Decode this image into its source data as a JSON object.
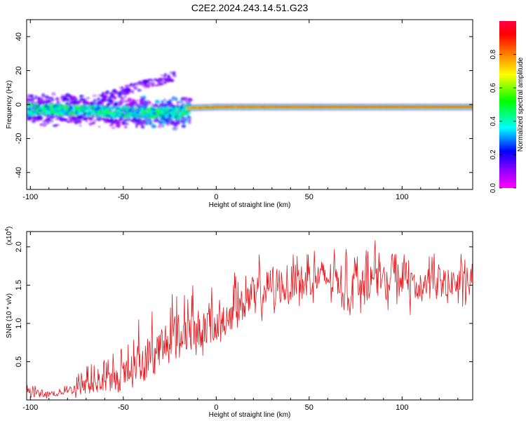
{
  "title": "C2E2.2024.243.14.51.G23",
  "colorbar": {
    "label": "Normalized spectral amplitude",
    "range": [
      0,
      1
    ],
    "ticks": [
      "0.0",
      "0.2",
      "0.4",
      "0.6",
      "0.8"
    ],
    "tick_values": [
      0.0,
      0.2,
      0.4,
      0.6,
      0.8
    ],
    "colormap": [
      "#ff00ff",
      "#8000ff",
      "#0000ff",
      "#00ffff",
      "#00ff00",
      "#ffff00",
      "#ff8000",
      "#ff0000",
      "#ff0040"
    ]
  },
  "chart_data": [
    {
      "type": "heatmap",
      "title": "",
      "xlabel": "Height of straight line (km)",
      "ylabel": "Frequency (Hz)",
      "xlim": [
        -102,
        138
      ],
      "ylim": [
        -50,
        50
      ],
      "xticks": [
        -100,
        -50,
        0,
        50,
        100
      ],
      "xtick_labels": [
        "-100",
        "-50",
        "0",
        "50",
        "100"
      ],
      "yticks": [
        -40,
        -20,
        0,
        20,
        40
      ],
      "ytick_labels": [
        "-40",
        "-20",
        "0",
        "20",
        "40"
      ],
      "grid": false,
      "description_of_signal": [
        {
          "x_range": [
            -102,
            -16
          ],
          "frequency_range": [
            -12,
            6
          ],
          "amplitude": "low-medium, scattered"
        },
        {
          "x_range": [
            -60,
            -22
          ],
          "frequency_range": [
            5,
            18
          ],
          "amplitude": "low, rising diagonal streak"
        },
        {
          "x_range": [
            -16,
            138
          ],
          "frequency": -1.5,
          "amplitude": "high, steady narrow band"
        }
      ],
      "ridge": {
        "x": [
          -102,
          -80,
          -60,
          -40,
          -20,
          -15,
          0,
          20,
          50,
          100,
          138
        ],
        "frequency": [
          -3,
          -3,
          -4,
          -5,
          -5,
          -2,
          -1.5,
          -1.5,
          -1.5,
          -1.5,
          -1.5
        ],
        "amplitude": [
          0.35,
          0.4,
          0.4,
          0.45,
          0.5,
          0.9,
          0.95,
          0.97,
          1.0,
          1.0,
          1.0
        ]
      }
    },
    {
      "type": "line",
      "title": "",
      "xlabel": "Height of straight line (km)",
      "ylabel": "SNR (10 * v/v)",
      "y_multiplier": "(x10",
      "y_multiplier_exp": "4",
      "y_multiplier_close": ")",
      "xlim": [
        -102,
        138
      ],
      "ylim": [
        0,
        22000
      ],
      "xticks": [
        -100,
        -50,
        0,
        50,
        100
      ],
      "xtick_labels": [
        "-100",
        "-50",
        "0",
        "50",
        "100"
      ],
      "yticks": [
        5000,
        10000,
        15000,
        20000
      ],
      "ytick_labels": [
        "0.5",
        "1.0",
        "1.5",
        "2.0"
      ],
      "grid": false,
      "series": [
        {
          "color": "#e8171d",
          "x": [
            -100,
            -90,
            -80,
            -70,
            -60,
            -50,
            -40,
            -30,
            -20,
            -10,
            0,
            10,
            20,
            30,
            40,
            50,
            60,
            70,
            80,
            90,
            100,
            110,
            120,
            130,
            138
          ],
          "y": [
            1000,
            800,
            1200,
            1800,
            2200,
            3000,
            5000,
            7000,
            8500,
            9000,
            10500,
            11500,
            13500,
            15000,
            15500,
            15800,
            16000,
            15500,
            15800,
            15500,
            15700,
            15300,
            15500,
            15300,
            15200
          ],
          "y_envelope_high": [
            2500,
            1800,
            2200,
            5500,
            6000,
            8500,
            13000,
            15000,
            16000,
            16000,
            17500,
            18000,
            20000,
            21500,
            21000,
            20500,
            21000,
            20000,
            21500,
            21000,
            20000,
            20500,
            21000,
            20000,
            19000
          ],
          "y_envelope_low": [
            0,
            0,
            0,
            0,
            0,
            500,
            1500,
            2500,
            3500,
            4500,
            6000,
            7500,
            9000,
            10500,
            10000,
            11000,
            11500,
            9500,
            10500,
            11000,
            10000,
            11000,
            10500,
            11000,
            10000
          ]
        }
      ]
    }
  ]
}
